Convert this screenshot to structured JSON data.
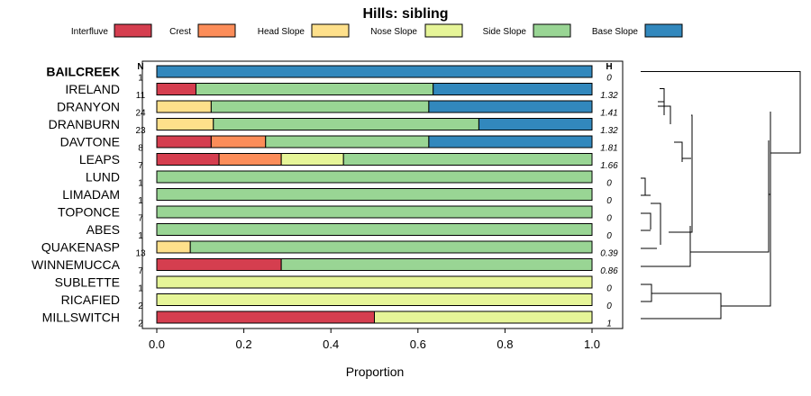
{
  "chart_data": {
    "type": "bar",
    "title": "Hills: sibling",
    "xlabel": "Proportion",
    "xlim": [
      0,
      1
    ],
    "xticks": [
      "0.0",
      "0.2",
      "0.4",
      "0.6",
      "0.8",
      "1.0"
    ],
    "n_header": "N",
    "h_header": "H",
    "legend": [
      {
        "name": "Interfluve",
        "color": "#D53E4F"
      },
      {
        "name": "Crest",
        "color": "#FC8D59"
      },
      {
        "name": "Head Slope",
        "color": "#FEE08B"
      },
      {
        "name": "Nose Slope",
        "color": "#E6F598"
      },
      {
        "name": "Side Slope",
        "color": "#99D594"
      },
      {
        "name": "Base Slope",
        "color": "#3288BD"
      }
    ],
    "categories": [
      {
        "name": "BAILCREEK",
        "bold": true,
        "n": "1",
        "h": "0",
        "values": [
          0,
          0,
          0,
          0,
          0,
          1
        ]
      },
      {
        "name": "IRELAND",
        "n": "11",
        "h": "1.32",
        "values": [
          0.09,
          0,
          0,
          0,
          0.545,
          0.365
        ]
      },
      {
        "name": "DRANYON",
        "n": "24",
        "h": "1.41",
        "values": [
          0,
          0,
          0.125,
          0,
          0.5,
          0.375
        ]
      },
      {
        "name": "DRANBURN",
        "n": "23",
        "h": "1.32",
        "values": [
          0,
          0,
          0.13,
          0,
          0.61,
          0.26
        ]
      },
      {
        "name": "DAVTONE",
        "n": "8",
        "h": "1.81",
        "values": [
          0.125,
          0.125,
          0,
          0,
          0.375,
          0.375
        ]
      },
      {
        "name": "LEAPS",
        "n": "7",
        "h": "1.66",
        "values": [
          0.143,
          0.143,
          0,
          0.143,
          0.571,
          0
        ]
      },
      {
        "name": "LUND",
        "n": "1",
        "h": "0",
        "values": [
          0,
          0,
          0,
          0,
          1,
          0
        ]
      },
      {
        "name": "LIMADAM",
        "n": "1",
        "h": "0",
        "values": [
          0,
          0,
          0,
          0,
          1,
          0
        ]
      },
      {
        "name": "TOPONCE",
        "n": "7",
        "h": "0",
        "values": [
          0,
          0,
          0,
          0,
          1,
          0
        ]
      },
      {
        "name": "ABES",
        "n": "1",
        "h": "0",
        "values": [
          0,
          0,
          0,
          0,
          1,
          0
        ]
      },
      {
        "name": "QUAKENASP",
        "n": "13",
        "h": "0.39",
        "values": [
          0,
          0,
          0.077,
          0,
          0.923,
          0
        ]
      },
      {
        "name": "WINNEMUCCA",
        "n": "7",
        "h": "0.86",
        "values": [
          0.286,
          0,
          0,
          0,
          0.714,
          0
        ]
      },
      {
        "name": "SUBLETTE",
        "n": "1",
        "h": "0",
        "values": [
          0,
          0,
          0,
          1,
          0,
          0
        ]
      },
      {
        "name": "RICAFIED",
        "n": "2",
        "h": "0",
        "values": [
          0,
          0,
          0,
          1,
          0,
          0
        ]
      },
      {
        "name": "MILLSWITCH",
        "n": "2",
        "h": "1",
        "values": [
          0.5,
          0,
          0,
          0.5,
          0,
          0
        ]
      }
    ]
  }
}
